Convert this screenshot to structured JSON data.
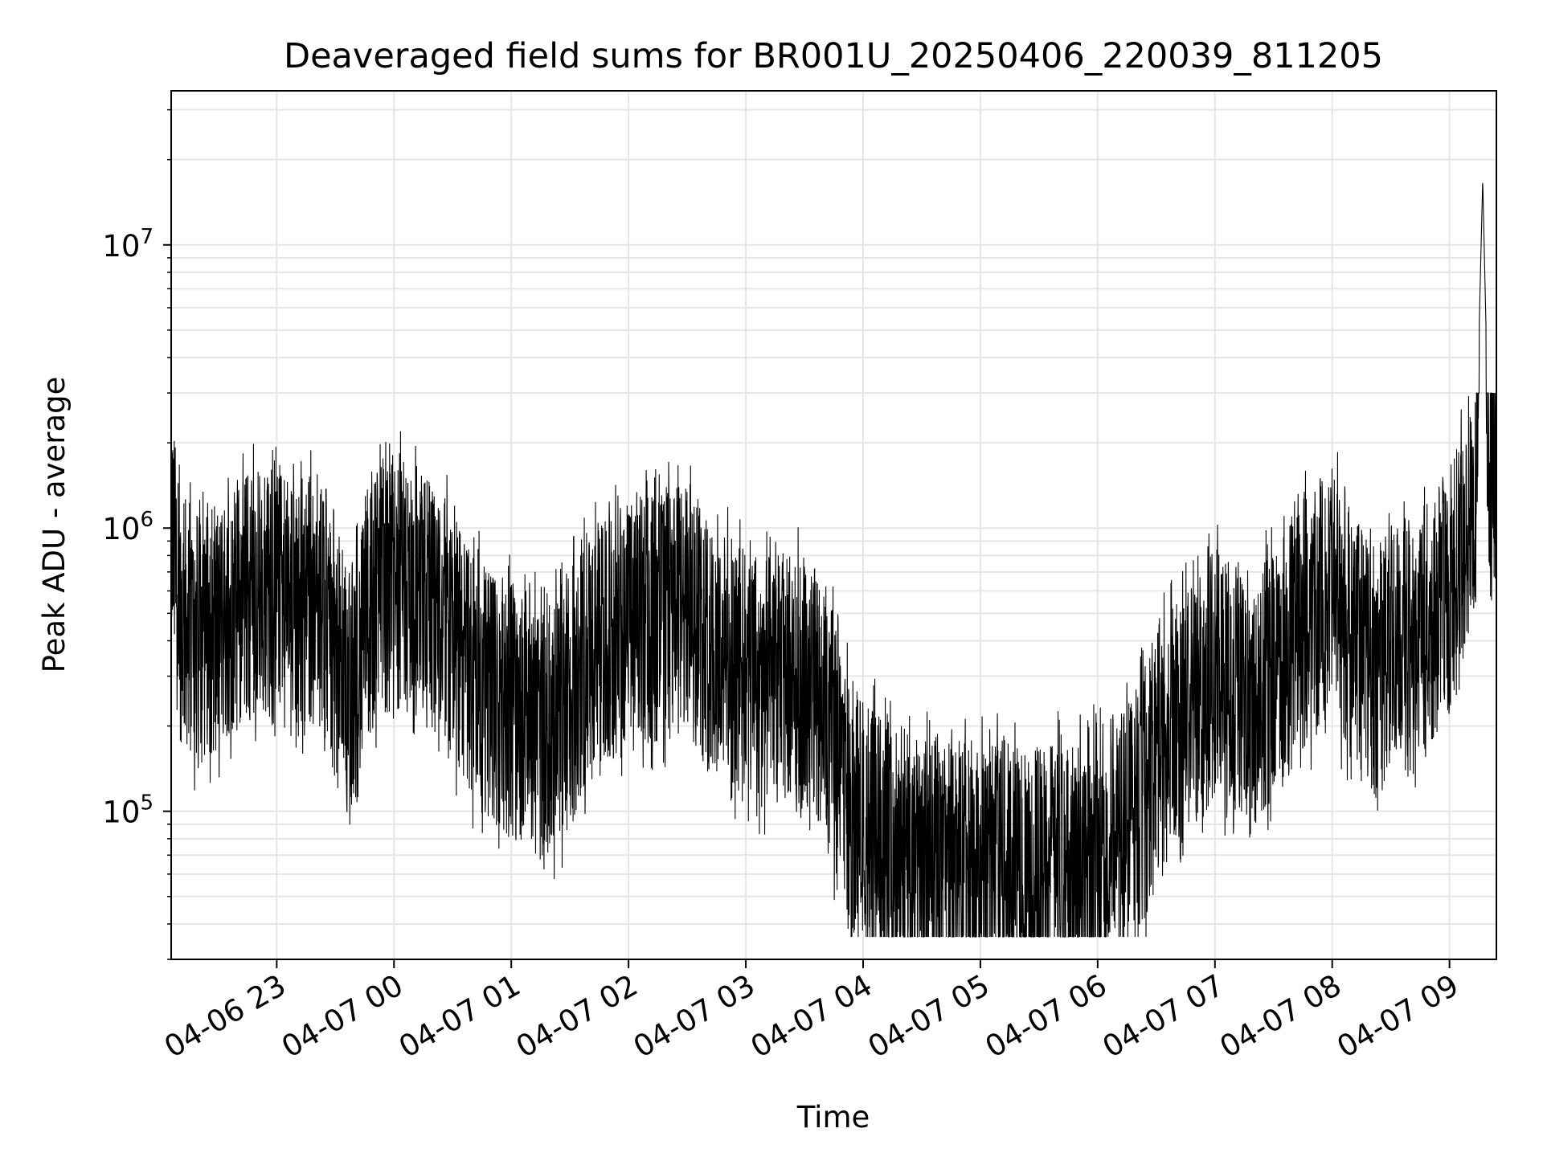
{
  "chart_data": {
    "type": "line",
    "title": "Deaveraged field sums for BR001U_20250406_220039_811205",
    "xlabel": "Time",
    "ylabel": "Peak ADU - average",
    "yscale": "log",
    "ylim": [
      30000,
      35000000
    ],
    "xlim": [
      "2025-04-06 22:06",
      "2025-04-07 09:24"
    ],
    "grid": true,
    "line_color": "#000000",
    "grid_color": "#e6e6e6",
    "x_ticks": [
      {
        "value": "2025-04-06 23:00",
        "label": "04-06 23"
      },
      {
        "value": "2025-04-07 00:00",
        "label": "04-07 00"
      },
      {
        "value": "2025-04-07 01:00",
        "label": "04-07 01"
      },
      {
        "value": "2025-04-07 02:00",
        "label": "04-07 02"
      },
      {
        "value": "2025-04-07 03:00",
        "label": "04-07 03"
      },
      {
        "value": "2025-04-07 04:00",
        "label": "04-07 04"
      },
      {
        "value": "2025-04-07 05:00",
        "label": "04-07 05"
      },
      {
        "value": "2025-04-07 06:00",
        "label": "04-07 06"
      },
      {
        "value": "2025-04-07 07:00",
        "label": "04-07 07"
      },
      {
        "value": "2025-04-07 08:00",
        "label": "04-07 08"
      },
      {
        "value": "2025-04-07 09:00",
        "label": "04-07 09"
      }
    ],
    "y_ticks": [
      {
        "value": 100000,
        "label": "10",
        "exp": "5"
      },
      {
        "value": 1000000,
        "label": "10",
        "exp": "6"
      },
      {
        "value": 10000000,
        "label": "10",
        "exp": "7"
      }
    ],
    "series": [
      {
        "values": [
          [
            "2025-04-06 22:06",
            1000000
          ],
          [
            "2025-04-06 22:10",
            500000
          ],
          [
            "2025-04-06 22:20",
            400000
          ],
          [
            "2025-04-06 22:30",
            450000
          ],
          [
            "2025-04-06 22:40",
            550000
          ],
          [
            "2025-04-06 22:50",
            600000
          ],
          [
            "2025-04-06 23:00",
            550000
          ],
          [
            "2025-04-06 23:10",
            500000
          ],
          [
            "2025-04-06 23:20",
            550000
          ],
          [
            "2025-04-06 23:30",
            350000
          ],
          [
            "2025-04-06 23:40",
            280000
          ],
          [
            "2025-04-06 23:50",
            550000
          ],
          [
            "2025-04-07 00:00",
            650000
          ],
          [
            "2025-04-07 00:10",
            600000
          ],
          [
            "2025-04-07 00:20",
            550000
          ],
          [
            "2025-04-07 00:30",
            400000
          ],
          [
            "2025-04-07 00:40",
            300000
          ],
          [
            "2025-04-07 00:50",
            250000
          ],
          [
            "2025-04-07 01:00",
            230000
          ],
          [
            "2025-04-07 01:10",
            200000
          ],
          [
            "2025-04-07 01:20",
            190000
          ],
          [
            "2025-04-07 01:30",
            250000
          ],
          [
            "2025-04-07 01:40",
            350000
          ],
          [
            "2025-04-07 01:50",
            400000
          ],
          [
            "2025-04-07 02:00",
            450000
          ],
          [
            "2025-04-07 02:10",
            480000
          ],
          [
            "2025-04-07 02:20",
            500000
          ],
          [
            "2025-04-07 02:30",
            500000
          ],
          [
            "2025-04-07 02:40",
            400000
          ],
          [
            "2025-04-07 02:50",
            350000
          ],
          [
            "2025-04-07 03:00",
            300000
          ],
          [
            "2025-04-07 03:10",
            280000
          ],
          [
            "2025-04-07 03:20",
            300000
          ],
          [
            "2025-04-07 03:30",
            280000
          ],
          [
            "2025-04-07 03:40",
            250000
          ],
          [
            "2025-04-07 03:50",
            120000
          ],
          [
            "2025-04-07 04:00",
            90000
          ],
          [
            "2025-04-07 04:10",
            80000
          ],
          [
            "2025-04-07 04:20",
            70000
          ],
          [
            "2025-04-07 04:30",
            65000
          ],
          [
            "2025-04-07 04:40",
            62000
          ],
          [
            "2025-04-07 04:50",
            60000
          ],
          [
            "2025-04-07 05:00",
            62000
          ],
          [
            "2025-04-07 05:10",
            65000
          ],
          [
            "2025-04-07 05:20",
            60000
          ],
          [
            "2025-04-07 05:30",
            62000
          ],
          [
            "2025-04-07 05:40",
            65000
          ],
          [
            "2025-04-07 05:50",
            65000
          ],
          [
            "2025-04-07 06:00",
            70000
          ],
          [
            "2025-04-07 06:10",
            80000
          ],
          [
            "2025-04-07 06:20",
            100000
          ],
          [
            "2025-04-07 06:30",
            150000
          ],
          [
            "2025-04-07 06:40",
            200000
          ],
          [
            "2025-04-07 06:50",
            250000
          ],
          [
            "2025-04-07 07:00",
            300000
          ],
          [
            "2025-04-07 07:10",
            280000
          ],
          [
            "2025-04-07 07:20",
            250000
          ],
          [
            "2025-04-07 07:30",
            300000
          ],
          [
            "2025-04-07 07:40",
            400000
          ],
          [
            "2025-04-07 07:50",
            500000
          ],
          [
            "2025-04-07 08:00",
            600000
          ],
          [
            "2025-04-07 08:10",
            400000
          ],
          [
            "2025-04-07 08:20",
            300000
          ],
          [
            "2025-04-07 08:30",
            350000
          ],
          [
            "2025-04-07 08:40",
            400000
          ],
          [
            "2025-04-07 08:50",
            450000
          ],
          [
            "2025-04-07 09:00",
            600000
          ],
          [
            "2025-04-07 09:08",
            800000
          ],
          [
            "2025-04-07 09:13",
            1200000
          ],
          [
            "2025-04-07 09:17",
            17000000
          ],
          [
            "2025-04-07 09:20",
            2000000
          ],
          [
            "2025-04-07 09:24",
            1800000
          ]
        ]
      }
    ]
  }
}
